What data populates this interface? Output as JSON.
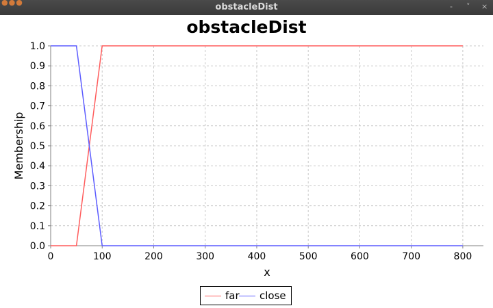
{
  "window": {
    "title": "obstacleDist",
    "minimize_glyph": "-",
    "restore_glyph": "˅",
    "close_glyph": "×"
  },
  "chart_data": {
    "type": "line",
    "title": "obstacleDist",
    "xlabel": "x",
    "ylabel": "Membership",
    "xlim": [
      0,
      840
    ],
    "ylim": [
      0,
      1.0
    ],
    "xticks": [
      0,
      100,
      200,
      300,
      400,
      500,
      600,
      700,
      800
    ],
    "yticks": [
      0.0,
      0.1,
      0.2,
      0.3,
      0.4,
      0.5,
      0.6,
      0.7,
      0.8,
      0.9,
      1.0
    ],
    "grid": true,
    "legend_position": "bottom",
    "series": [
      {
        "name": "far",
        "color": "#ff5c5c",
        "x": [
          0,
          50,
          100,
          800
        ],
        "y": [
          0,
          0,
          1,
          1
        ]
      },
      {
        "name": "close",
        "color": "#5c5cff",
        "x": [
          0,
          50,
          100,
          800
        ],
        "y": [
          1,
          1,
          0,
          0
        ]
      }
    ]
  }
}
